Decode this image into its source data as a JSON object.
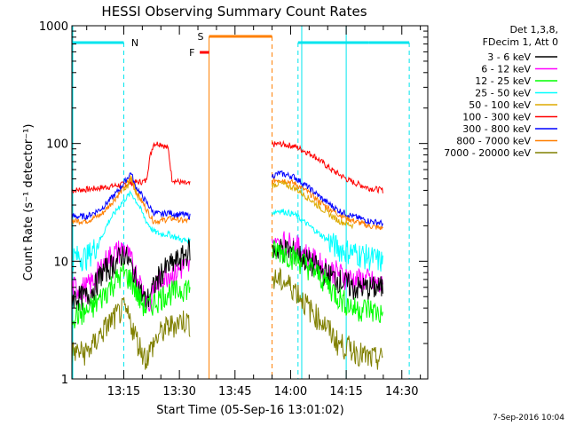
{
  "chart_data": {
    "type": "line",
    "title": "HESSI Observing Summary Count Rates",
    "xlabel": "Start Time (05-Sep-16 13:01:02)",
    "ylabel": "Count Rate (s⁻¹ detector⁻¹)",
    "ylim": [
      1,
      1000
    ],
    "yscale": "log",
    "xlim_minutes": [
      0,
      96
    ],
    "ytick_labels": [
      "1",
      "10",
      "100",
      "1000"
    ],
    "xticks": [
      {
        "label": "13:15",
        "minute": 14
      },
      {
        "label": "13:30",
        "minute": 29
      },
      {
        "label": "13:45",
        "minute": 44
      },
      {
        "label": "14:00",
        "minute": 59
      },
      {
        "label": "14:15",
        "minute": 74
      },
      {
        "label": "14:30",
        "minute": 89
      }
    ],
    "legend": {
      "header": [
        "Det 1,3,8,",
        "FDecim 1, Att 0"
      ],
      "entries": [
        {
          "label": "3 - 6 keV",
          "color": "#000000"
        },
        {
          "label": "6 - 12 keV",
          "color": "#ff00ff"
        },
        {
          "label": "12 - 25 keV",
          "color": "#00ff00"
        },
        {
          "label": "25 - 50 keV",
          "color": "#00ffff"
        },
        {
          "label": "50 - 100 keV",
          "color": "#ddaa00"
        },
        {
          "label": "100 - 300 keV",
          "color": "#ff0000"
        },
        {
          "label": "300 - 800 keV",
          "color": "#0000ff"
        },
        {
          "label": "800 - 7000 keV",
          "color": "#ff7f00"
        },
        {
          "label": "7000 - 20000 keV",
          "color": "#808000"
        }
      ],
      "placement": "right"
    },
    "flags": [
      {
        "label": "N",
        "color": "#00e5ee"
      },
      {
        "label": "S",
        "color": "#ff7f00"
      },
      {
        "label": "F",
        "color": "#ff0000"
      }
    ],
    "series": [
      {
        "band": "100 - 300 keV",
        "color": "#ff0000",
        "segments": [
          [
            [
              0,
              40
            ],
            [
              5,
              41
            ],
            [
              10,
              43
            ],
            [
              14,
              45
            ],
            [
              18,
              47
            ],
            [
              20,
              48
            ],
            [
              21,
              75
            ],
            [
              22,
              100
            ],
            [
              24,
              100
            ],
            [
              25,
              95
            ],
            [
              26,
              90
            ],
            [
              27,
              50
            ],
            [
              28,
              48
            ],
            [
              30,
              46
            ],
            [
              32,
              45
            ]
          ],
          [
            [
              54,
              98
            ],
            [
              56,
              99
            ],
            [
              60,
              95
            ],
            [
              65,
              80
            ],
            [
              70,
              60
            ],
            [
              75,
              48
            ],
            [
              80,
              42
            ],
            [
              84,
              40
            ]
          ]
        ]
      },
      {
        "band": "800 - 7000 keV",
        "color": "#ff7f00",
        "segments": [
          [
            [
              0,
              22
            ],
            [
              4,
              22
            ],
            [
              8,
              25
            ],
            [
              12,
              35
            ],
            [
              14,
              42
            ],
            [
              16,
              52
            ],
            [
              17,
              40
            ],
            [
              18,
              36
            ],
            [
              20,
              28
            ],
            [
              22,
              22
            ],
            [
              24,
              22
            ],
            [
              26,
              23
            ],
            [
              28,
              23
            ],
            [
              30,
              22
            ],
            [
              32,
              22
            ]
          ],
          [
            [
              54,
              48
            ],
            [
              56,
              50
            ],
            [
              60,
              46
            ],
            [
              64,
              38
            ],
            [
              68,
              30
            ],
            [
              72,
              25
            ],
            [
              76,
              22
            ],
            [
              80,
              20
            ],
            [
              84,
              19
            ]
          ]
        ]
      },
      {
        "band": "300 - 800 keV",
        "color": "#0000ff",
        "segments": [
          [
            [
              0,
              24
            ],
            [
              4,
              24
            ],
            [
              8,
              28
            ],
            [
              12,
              38
            ],
            [
              14,
              46
            ],
            [
              16,
              57
            ],
            [
              17,
              44
            ],
            [
              18,
              40
            ],
            [
              20,
              32
            ],
            [
              22,
              26
            ],
            [
              24,
              25
            ],
            [
              26,
              26
            ],
            [
              28,
              25
            ],
            [
              30,
              25
            ],
            [
              32,
              24
            ]
          ],
          [
            [
              54,
              53
            ],
            [
              56,
              56
            ],
            [
              60,
              52
            ],
            [
              64,
              42
            ],
            [
              68,
              33
            ],
            [
              72,
              27
            ],
            [
              76,
              24
            ],
            [
              80,
              22
            ],
            [
              84,
              21
            ]
          ]
        ]
      },
      {
        "band": "50 - 100 keV",
        "color": "#ddaa00",
        "segments": [
          [
            [
              14,
              38
            ],
            [
              16,
              50
            ],
            [
              18,
              34
            ]
          ],
          [
            [
              54,
              44
            ],
            [
              56,
              46
            ],
            [
              60,
              42
            ],
            [
              64,
              34
            ],
            [
              68,
              27
            ],
            [
              72,
              22
            ],
            [
              76,
              20
            ]
          ]
        ]
      },
      {
        "band": "25 - 50 keV",
        "color": "#00ffff",
        "segments": [
          [
            [
              0,
              11
            ],
            [
              4,
              11
            ],
            [
              6,
              13
            ],
            [
              8,
              16
            ],
            [
              10,
              22
            ],
            [
              12,
              27
            ],
            [
              14,
              33
            ],
            [
              16,
              38
            ],
            [
              18,
              30
            ],
            [
              20,
              22
            ],
            [
              22,
              18
            ],
            [
              24,
              17
            ],
            [
              26,
              17
            ],
            [
              28,
              16
            ],
            [
              30,
              15
            ],
            [
              32,
              15
            ]
          ],
          [
            [
              54,
              26
            ],
            [
              56,
              27
            ],
            [
              60,
              25
            ],
            [
              64,
              20
            ],
            [
              68,
              16
            ],
            [
              72,
              13
            ],
            [
              76,
              12
            ],
            [
              80,
              11
            ],
            [
              84,
              10
            ]
          ]
        ]
      },
      {
        "band": "6 - 12 keV",
        "color": "#ff00ff",
        "segments": [
          [
            [
              0,
              6
            ],
            [
              4,
              6
            ],
            [
              6,
              7
            ],
            [
              8,
              9
            ],
            [
              10,
              11
            ],
            [
              12,
              12
            ],
            [
              14,
              13
            ],
            [
              16,
              10
            ],
            [
              18,
              7
            ],
            [
              20,
              5
            ],
            [
              21,
              4
            ],
            [
              22,
              6
            ],
            [
              24,
              7
            ],
            [
              26,
              8
            ],
            [
              28,
              8
            ],
            [
              30,
              9
            ],
            [
              32,
              9
            ]
          ],
          [
            [
              54,
              15
            ],
            [
              56,
              15
            ],
            [
              60,
              14
            ],
            [
              64,
              11
            ],
            [
              68,
              9
            ],
            [
              72,
              8
            ],
            [
              76,
              7
            ],
            [
              80,
              7
            ],
            [
              84,
              6
            ]
          ]
        ]
      },
      {
        "band": "3 - 6 keV",
        "color": "#000000",
        "segments": [
          [
            [
              0,
              5
            ],
            [
              4,
              5
            ],
            [
              6,
              6
            ],
            [
              8,
              8
            ],
            [
              10,
              9
            ],
            [
              12,
              10
            ],
            [
              14,
              12
            ],
            [
              16,
              9
            ],
            [
              18,
              6
            ],
            [
              20,
              4.5
            ],
            [
              22,
              6
            ],
            [
              24,
              8
            ],
            [
              26,
              9
            ],
            [
              28,
              10
            ],
            [
              30,
              11
            ],
            [
              32,
              13
            ]
          ],
          [
            [
              54,
              12
            ],
            [
              56,
              13
            ],
            [
              60,
              12
            ],
            [
              64,
              10
            ],
            [
              68,
              8
            ],
            [
              72,
              7
            ],
            [
              76,
              6
            ],
            [
              80,
              6
            ],
            [
              84,
              6
            ]
          ]
        ]
      },
      {
        "band": "12 - 25 keV",
        "color": "#00ff00",
        "segments": [
          [
            [
              0,
              3.5
            ],
            [
              4,
              3.7
            ],
            [
              6,
              4.2
            ],
            [
              8,
              5
            ],
            [
              10,
              6
            ],
            [
              12,
              7
            ],
            [
              14,
              8
            ],
            [
              16,
              7
            ],
            [
              18,
              5
            ],
            [
              20,
              4
            ],
            [
              22,
              4.5
            ],
            [
              24,
              5
            ],
            [
              26,
              5.5
            ],
            [
              28,
              5.5
            ],
            [
              30,
              6
            ],
            [
              32,
              6
            ]
          ],
          [
            [
              54,
              12
            ],
            [
              56,
              12.5
            ],
            [
              60,
              11
            ],
            [
              64,
              9
            ],
            [
              68,
              7
            ],
            [
              72,
              5
            ],
            [
              76,
              4
            ],
            [
              80,
              4
            ],
            [
              84,
              3.5
            ]
          ]
        ]
      },
      {
        "band": "7000 - 20000 keV",
        "color": "#808000",
        "segments": [
          [
            [
              0,
              1.7
            ],
            [
              4,
              1.7
            ],
            [
              6,
              2
            ],
            [
              8,
              2.5
            ],
            [
              10,
              3
            ],
            [
              12,
              3.5
            ],
            [
              14,
              4
            ],
            [
              16,
              3
            ],
            [
              18,
              2
            ],
            [
              20,
              1.5
            ],
            [
              22,
              2
            ],
            [
              24,
              2.5
            ],
            [
              26,
              2.8
            ],
            [
              28,
              3
            ],
            [
              30,
              3.2
            ],
            [
              32,
              3
            ]
          ],
          [
            [
              54,
              7
            ],
            [
              56,
              7
            ],
            [
              60,
              6
            ],
            [
              64,
              4
            ],
            [
              68,
              3
            ],
            [
              72,
              2
            ],
            [
              76,
              1.8
            ],
            [
              80,
              1.5
            ],
            [
              84,
              1.5
            ]
          ]
        ]
      }
    ]
  },
  "footer": {
    "date_stamp": "7-Sep-2016 10:04"
  }
}
